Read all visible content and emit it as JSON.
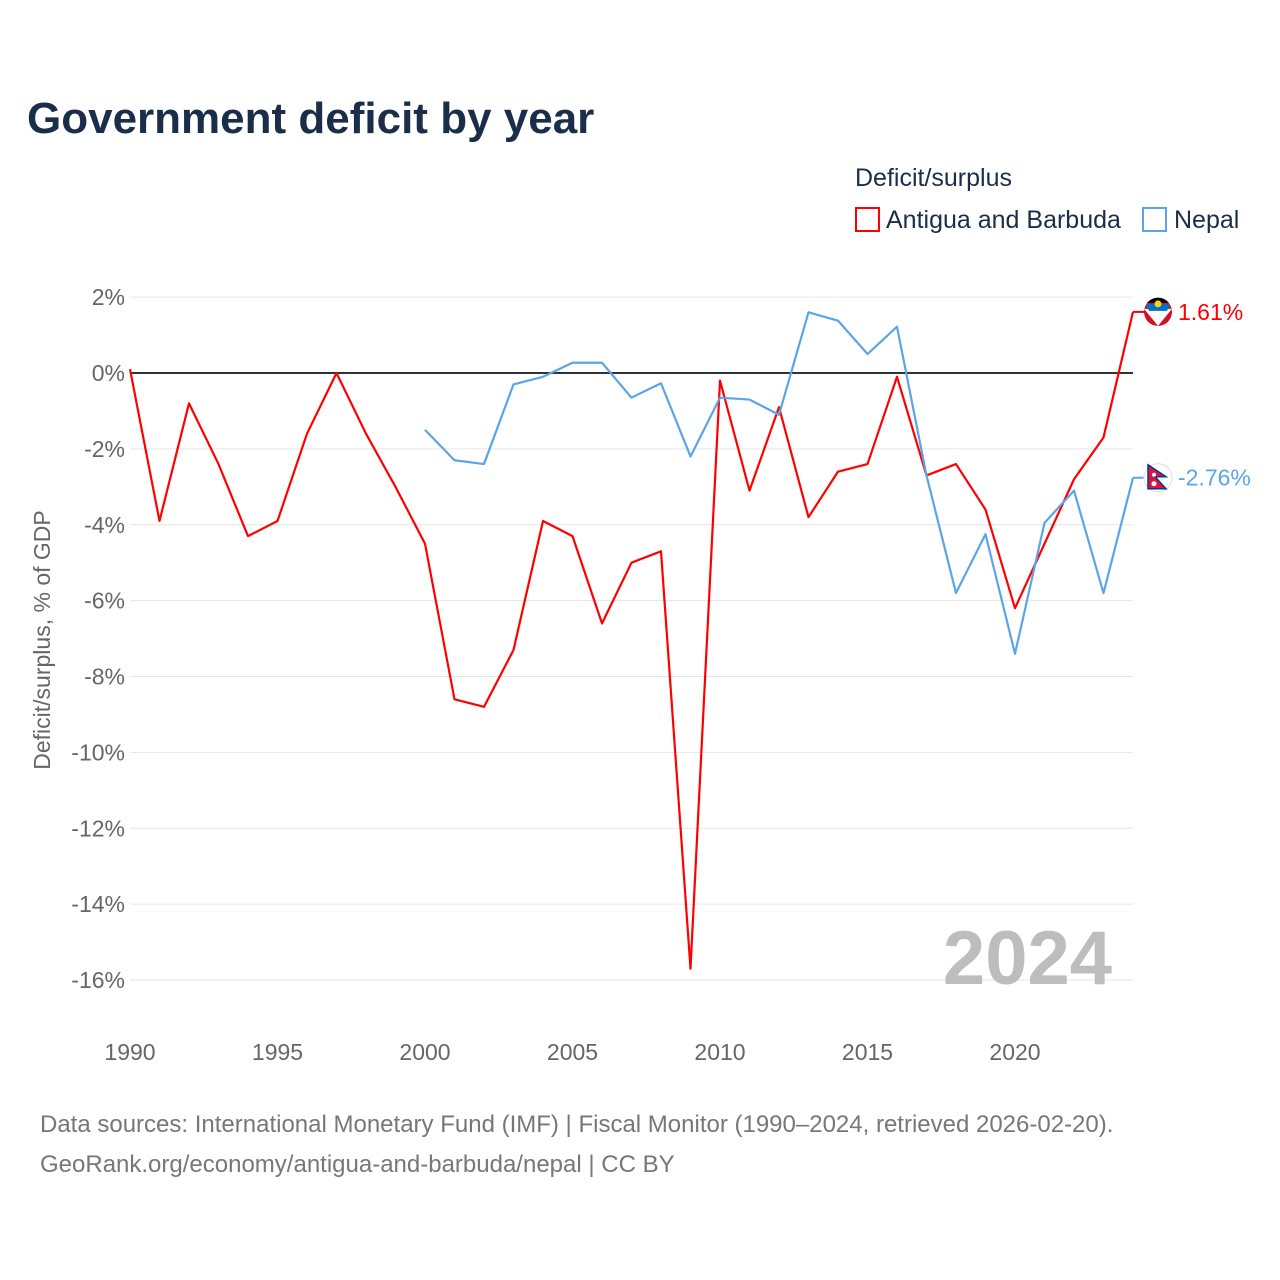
{
  "chart_data": {
    "type": "line",
    "title": "Government deficit by year",
    "legend_title": "Deficit/surplus",
    "legend_position": "top-right",
    "ylabel": "Deficit/surplus, % of GDP",
    "xlabel": "",
    "xlim": [
      1990,
      2024
    ],
    "ylim": [
      -17,
      2
    ],
    "x_ticks": [
      1990,
      1995,
      2000,
      2005,
      2010,
      2015,
      2020
    ],
    "x_tick_labels": [
      "1990",
      "1995",
      "2000",
      "2005",
      "2010",
      "2015",
      "2020"
    ],
    "y_ticks": [
      2,
      0,
      -2,
      -4,
      -6,
      -8,
      -10,
      -12,
      -14,
      -16
    ],
    "y_tick_labels": [
      "2%",
      "0%",
      "-2%",
      "-4%",
      "-6%",
      "-8%",
      "-10%",
      "-12%",
      "-14%",
      "-16%"
    ],
    "grid": true,
    "watermark_year": "2024",
    "series": [
      {
        "name": "Antigua and Barbuda",
        "color": "#ff0000",
        "end_label": "1.61%",
        "flag": "antigua-and-barbuda-flag",
        "x": [
          1990,
          1991,
          1992,
          1993,
          1994,
          1995,
          1996,
          1997,
          1998,
          1999,
          2000,
          2001,
          2002,
          2003,
          2004,
          2005,
          2006,
          2007,
          2008,
          2009,
          2010,
          2011,
          2012,
          2013,
          2014,
          2015,
          2016,
          2017,
          2018,
          2019,
          2020,
          2021,
          2022,
          2023,
          2024
        ],
        "values": [
          0.1,
          -3.9,
          -0.8,
          -2.4,
          -4.3,
          -3.9,
          -1.6,
          0.0,
          -1.6,
          -3.0,
          -4.5,
          -8.6,
          -8.8,
          -7.3,
          -3.9,
          -4.3,
          -6.6,
          -5.0,
          -4.7,
          -15.7,
          -0.2,
          -3.1,
          -0.9,
          -3.8,
          -2.6,
          -2.4,
          -0.1,
          -2.7,
          -2.4,
          -3.6,
          -6.2,
          -4.5,
          -2.8,
          -1.7,
          1.61
        ]
      },
      {
        "name": "Nepal",
        "color": "#5aa5e8",
        "end_label": "-2.76%",
        "flag": "nepal-flag",
        "x": [
          2000,
          2001,
          2002,
          2003,
          2004,
          2005,
          2006,
          2007,
          2008,
          2009,
          2010,
          2011,
          2012,
          2013,
          2014,
          2015,
          2016,
          2017,
          2018,
          2019,
          2020,
          2021,
          2022,
          2023,
          2024
        ],
        "values": [
          -1.5,
          -2.3,
          -2.4,
          -0.3,
          -0.1,
          0.27,
          0.27,
          -0.65,
          -0.27,
          -2.2,
          -0.65,
          -0.7,
          -1.1,
          1.6,
          1.38,
          0.5,
          1.22,
          -2.7,
          -5.8,
          -4.25,
          -7.4,
          -3.95,
          -3.1,
          -5.8,
          -2.76
        ]
      }
    ]
  },
  "footer": {
    "source_line1": "Data sources: International Monetary Fund (IMF) | Fiscal Monitor (1990–2024, retrieved 2026-02-20).",
    "source_line2": "GeoRank.org/economy/antigua-and-barbuda/nepal | CC BY"
  }
}
